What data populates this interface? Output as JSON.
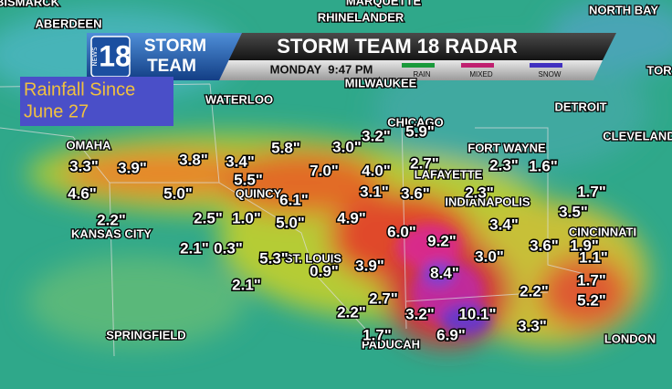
{
  "header": {
    "logo_news": "NEWS",
    "logo_number": "18",
    "logo_line1": "STORM",
    "logo_line2": "TEAM",
    "title": "STORM TEAM 18 RADAR",
    "timestamp": "MONDAY  9:47 PM",
    "legend": [
      "RAIN",
      "MIXED",
      "SNOW"
    ]
  },
  "info_box": {
    "lines": [
      "Rainfall Since",
      "June 27"
    ]
  },
  "cities": [
    "BISMARCK",
    "ABERDEEN",
    "MARQUETTE",
    "RHINELANDER",
    "NORTH BAY",
    "TOR",
    "WATERLOO",
    "MILWAUKEE",
    "DETROIT",
    "CLEVELAND",
    "CHICAGO",
    "FORT WAYNE",
    "OMAHA",
    "LAFAYETTE",
    "INDIANAPOLIS",
    "QUINCY",
    "KANSAS CITY",
    "CINCINNATI",
    "ST. LOUIS",
    "SPRINGFIELD",
    "PADUCAH",
    "LONDON"
  ],
  "rainfall_totals": [
    "3.3\"",
    "3.9\"",
    "3.8\"",
    "3.4\"",
    "5.8\"",
    "3.0\"",
    "3.2\"",
    "5.9\"",
    "5.5\"",
    "7.0\"",
    "4.0\"",
    "2.7\"",
    "2.3\"",
    "1.6\"",
    "4.6\"",
    "5.0\"",
    "6.1\"",
    "3.1\"",
    "3.6\"",
    "2.3\"",
    "1.7\"",
    "3.5\"",
    "2.2\"",
    "2.5\"",
    "1.0\"",
    "5.0\"",
    "4.9\"",
    "6.0\"",
    "9.2\"",
    "3.4\"",
    "2.1\"",
    "0.3\"",
    "3.6\"",
    "1.9\"",
    "1.1\"",
    "5.3\"",
    "0.9\"",
    "3.9\"",
    "3.0\"",
    "8.4\"",
    "2.1\"",
    "2.2\"",
    "1.7\"",
    "2.7\"",
    "2.2\"",
    "3.2\"",
    "10.1\"",
    "5.2\"",
    "3.3\"",
    "1.7\"",
    "6.9\""
  ]
}
